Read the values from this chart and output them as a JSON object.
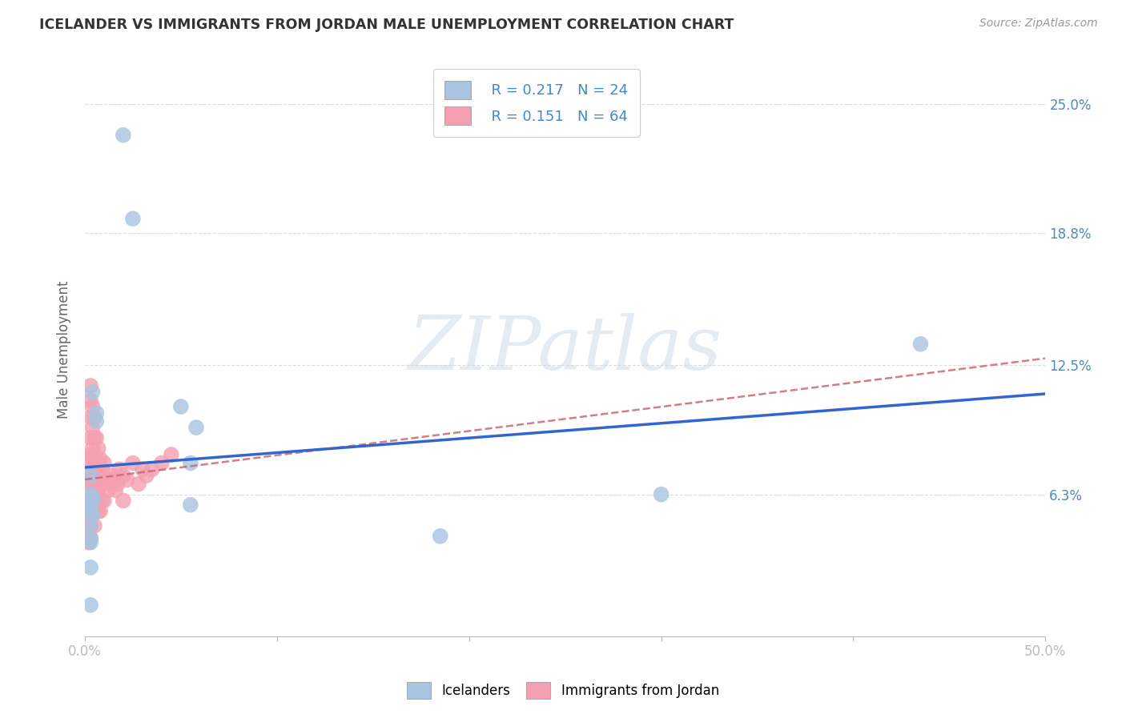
{
  "title": "ICELANDER VS IMMIGRANTS FROM JORDAN MALE UNEMPLOYMENT CORRELATION CHART",
  "source": "Source: ZipAtlas.com",
  "ylabel_label": "Male Unemployment",
  "y_tick_labels": [
    "6.3%",
    "12.5%",
    "18.8%",
    "25.0%"
  ],
  "y_tick_values": [
    0.063,
    0.125,
    0.188,
    0.25
  ],
  "x_lim": [
    0.0,
    0.5
  ],
  "y_lim": [
    -0.005,
    0.27
  ],
  "legend_r1": "R = 0.217",
  "legend_n1": "N = 24",
  "legend_r2": "R = 0.151",
  "legend_n2": "N = 64",
  "color_icelander": "#a8c4e0",
  "color_jordan": "#f4a0b0",
  "color_line_icelander": "#3366cc",
  "color_line_jordan": "#cc6677",
  "icelander_x": [
    0.02,
    0.025,
    0.004,
    0.006,
    0.006,
    0.003,
    0.003,
    0.004,
    0.004,
    0.003,
    0.003,
    0.004,
    0.003,
    0.003,
    0.003,
    0.05,
    0.055,
    0.058,
    0.055,
    0.185,
    0.3,
    0.435,
    0.003,
    0.003
  ],
  "icelander_y": [
    0.235,
    0.195,
    0.112,
    0.102,
    0.098,
    0.072,
    0.063,
    0.061,
    0.06,
    0.058,
    0.055,
    0.053,
    0.048,
    0.042,
    0.04,
    0.105,
    0.078,
    0.095,
    0.058,
    0.043,
    0.063,
    0.135,
    0.028,
    0.01
  ],
  "jordan_x": [
    0.002,
    0.002,
    0.002,
    0.002,
    0.002,
    0.002,
    0.002,
    0.002,
    0.002,
    0.002,
    0.003,
    0.003,
    0.003,
    0.003,
    0.003,
    0.003,
    0.003,
    0.003,
    0.003,
    0.003,
    0.003,
    0.004,
    0.004,
    0.004,
    0.004,
    0.004,
    0.005,
    0.005,
    0.005,
    0.005,
    0.005,
    0.005,
    0.006,
    0.006,
    0.006,
    0.007,
    0.007,
    0.007,
    0.007,
    0.008,
    0.008,
    0.008,
    0.009,
    0.009,
    0.01,
    0.01,
    0.011,
    0.012,
    0.013,
    0.014,
    0.015,
    0.016,
    0.017,
    0.018,
    0.02,
    0.02,
    0.022,
    0.025,
    0.028,
    0.03,
    0.032,
    0.035,
    0.04,
    0.045
  ],
  "jordan_y": [
    0.08,
    0.072,
    0.068,
    0.065,
    0.06,
    0.058,
    0.055,
    0.05,
    0.045,
    0.04,
    0.115,
    0.108,
    0.1,
    0.09,
    0.082,
    0.075,
    0.068,
    0.06,
    0.055,
    0.048,
    0.042,
    0.105,
    0.095,
    0.085,
    0.07,
    0.055,
    0.1,
    0.09,
    0.08,
    0.07,
    0.062,
    0.048,
    0.09,
    0.075,
    0.06,
    0.085,
    0.075,
    0.065,
    0.055,
    0.08,
    0.068,
    0.055,
    0.075,
    0.06,
    0.078,
    0.06,
    0.07,
    0.065,
    0.068,
    0.072,
    0.07,
    0.065,
    0.068,
    0.075,
    0.072,
    0.06,
    0.07,
    0.078,
    0.068,
    0.075,
    0.072,
    0.075,
    0.078,
    0.082
  ],
  "background_color": "#ffffff",
  "grid_color": "#dddddd",
  "watermark_text": "ZIPatlas",
  "watermark_color": "#ccd8e8",
  "watermark_alpha": 0.5
}
